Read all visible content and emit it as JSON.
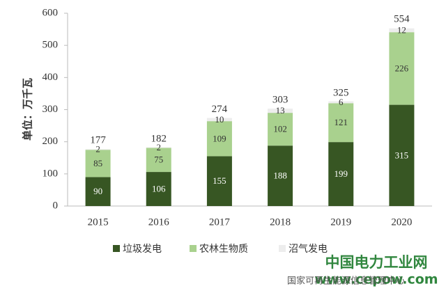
{
  "chart_data": {
    "type": "stacked_bar",
    "y_label": "单位：万千瓦",
    "categories": [
      "2015",
      "2016",
      "2017",
      "2018",
      "2019",
      "2020"
    ],
    "series": [
      {
        "name": "垃圾发电",
        "color": "#375623",
        "values": [
          90,
          106,
          155,
          188,
          199,
          315
        ]
      },
      {
        "name": "农林生物质",
        "color": "#a9d18e",
        "values": [
          85,
          75,
          109,
          102,
          121,
          226
        ]
      },
      {
        "name": "沼气发电",
        "color": "#ededed",
        "values": [
          2,
          2,
          10,
          13,
          6,
          12
        ]
      }
    ],
    "totals": [
      177,
      182,
      274,
      303,
      325,
      554
    ],
    "ylim": [
      0,
      600
    ],
    "yticks": [
      0,
      100,
      200,
      300,
      400,
      500,
      600
    ],
    "grid": false
  },
  "watermark": {
    "title": "中国电力工业网",
    "url": "www.cepow.com",
    "source": "国家可再生能源信息管理中心"
  }
}
